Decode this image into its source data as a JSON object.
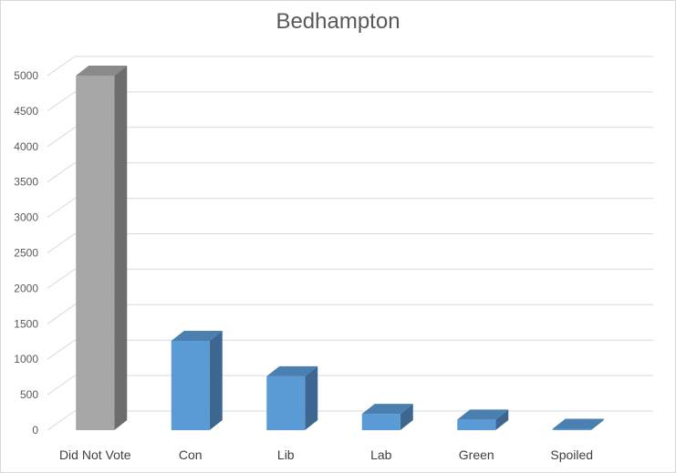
{
  "chart_data": {
    "type": "bar",
    "title": "Bedhampton",
    "categories": [
      "Did Not Vote",
      "Con",
      "Lib",
      "Lab",
      "Green",
      "Spoiled"
    ],
    "values": [
      5000,
      1260,
      760,
      230,
      150,
      20
    ],
    "ylim": [
      0,
      5000
    ],
    "yticks": [
      0,
      500,
      1000,
      1500,
      2000,
      2500,
      3000,
      3500,
      4000,
      4500,
      5000
    ],
    "grid": true,
    "colors": {
      "front": [
        "#a6a6a6",
        "#5b9bd5",
        "#5b9bd5",
        "#5b9bd5",
        "#5b9bd5",
        "#5b9bd5"
      ],
      "side": [
        "#6d6d6d",
        "#3d6791",
        "#3d6791",
        "#3d6791",
        "#3d6791",
        "#3d6791"
      ],
      "top": [
        "#8a8a8a",
        "#4a7fb0",
        "#4a7fb0",
        "#4a7fb0",
        "#4a7fb0",
        "#4a7fb0"
      ]
    }
  }
}
